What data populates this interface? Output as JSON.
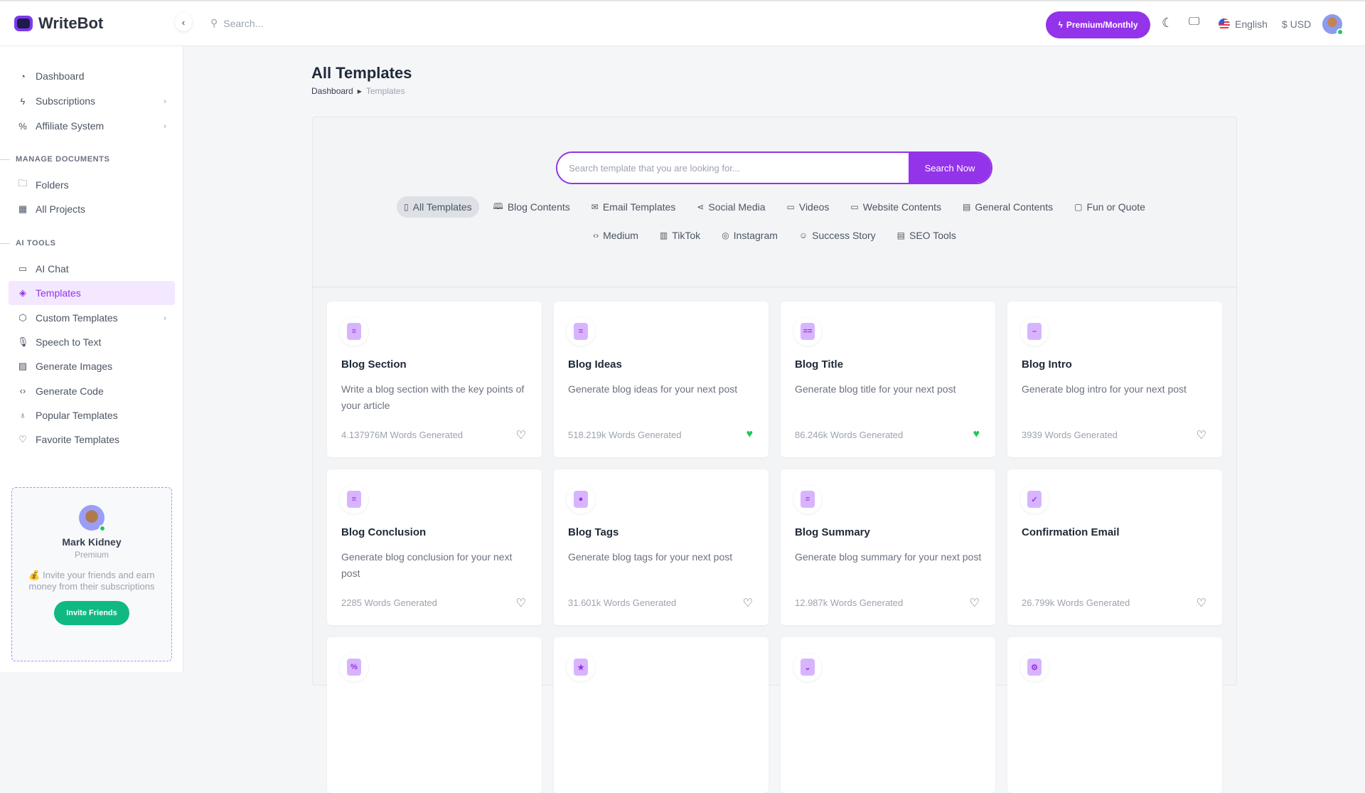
{
  "header": {
    "brand": "WriteBot",
    "search_placeholder": "Search...",
    "premium_label": "Premium/Monthly",
    "language": "English",
    "currency": "$ USD"
  },
  "sidebar": {
    "items_top": [
      {
        "label": "Dashboard",
        "icon": "pie-chart-icon"
      },
      {
        "label": "Subscriptions",
        "icon": "bolt-icon",
        "chevron": true
      },
      {
        "label": "Affiliate System",
        "icon": "percent-icon",
        "chevron": true
      }
    ],
    "section_docs": "MANAGE DOCUMENTS",
    "items_docs": [
      {
        "label": "Folders",
        "icon": "folder-icon"
      },
      {
        "label": "All Projects",
        "icon": "grid-icon"
      }
    ],
    "section_ai": "AI TOOLS",
    "items_ai": [
      {
        "label": "AI Chat",
        "icon": "chat-icon"
      },
      {
        "label": "Templates",
        "icon": "layers-icon",
        "active": true
      },
      {
        "label": "Custom Templates",
        "icon": "cube-icon",
        "chevron": true
      },
      {
        "label": "Speech to Text",
        "icon": "mic-icon"
      },
      {
        "label": "Generate Images",
        "icon": "image-icon"
      },
      {
        "label": "Generate Code",
        "icon": "code-icon"
      },
      {
        "label": "Popular Templates",
        "icon": "award-icon"
      },
      {
        "label": "Favorite Templates",
        "icon": "heart-icon"
      }
    ],
    "promo": {
      "name": "Mark Kidney",
      "plan": "Premium",
      "text": "💰 Invite your friends and earn money from their subscriptions",
      "button": "Invite Friends"
    }
  },
  "page": {
    "title": "All Templates",
    "breadcrumb": [
      "Dashboard",
      "Templates"
    ]
  },
  "template_search": {
    "placeholder": "Search template that you are looking for...",
    "button": "Search Now"
  },
  "filters_row1": [
    {
      "label": "All Templates",
      "icon": "tablet-icon",
      "active": true
    },
    {
      "label": "Blog Contents",
      "icon": "book-icon"
    },
    {
      "label": "Email Templates",
      "icon": "mail-icon"
    },
    {
      "label": "Social Media",
      "icon": "share-icon"
    },
    {
      "label": "Videos",
      "icon": "video-icon"
    },
    {
      "label": "Website Contents",
      "icon": "monitor-icon"
    },
    {
      "label": "General Contents",
      "icon": "file-icon"
    },
    {
      "label": "Fun or Quote",
      "icon": "tv-icon"
    }
  ],
  "filters_row2": [
    {
      "label": "Medium",
      "icon": "code-icon"
    },
    {
      "label": "TikTok",
      "icon": "film-icon"
    },
    {
      "label": "Instagram",
      "icon": "instagram-icon"
    },
    {
      "label": "Success Story",
      "icon": "smile-icon"
    },
    {
      "label": "SEO Tools",
      "icon": "file-icon"
    }
  ],
  "accent": "#9333ea",
  "templates": [
    {
      "title": "Blog Section",
      "desc": "Write a blog section with the key points of your article",
      "words": "4.137976M Words Generated",
      "favorite": false
    },
    {
      "title": "Blog Ideas",
      "desc": "Generate blog ideas for your next post",
      "words": "518.219k Words Generated",
      "favorite": true
    },
    {
      "title": "Blog Title",
      "desc": "Generate blog title for your next post",
      "words": "86.246k Words Generated",
      "favorite": true
    },
    {
      "title": "Blog Intro",
      "desc": "Generate blog intro for your next post",
      "words": "3939 Words Generated",
      "favorite": false
    },
    {
      "title": "Blog Conclusion",
      "desc": "Generate blog conclusion for your next post",
      "words": "2285 Words Generated",
      "favorite": false
    },
    {
      "title": "Blog Tags",
      "desc": "Generate blog tags for your next post",
      "words": "31.601k Words Generated",
      "favorite": false
    },
    {
      "title": "Blog Summary",
      "desc": "Generate blog summary for your next post",
      "words": "12.987k Words Generated",
      "favorite": false
    },
    {
      "title": "Confirmation Email",
      "desc": "",
      "words": "26.799k Words Generated",
      "favorite": false
    },
    {
      "title": "",
      "desc": "",
      "words": "",
      "favorite": false
    },
    {
      "title": "",
      "desc": "",
      "words": "",
      "favorite": false
    },
    {
      "title": "",
      "desc": "",
      "words": "",
      "favorite": false
    },
    {
      "title": "",
      "desc": "",
      "words": "",
      "favorite": false
    }
  ]
}
